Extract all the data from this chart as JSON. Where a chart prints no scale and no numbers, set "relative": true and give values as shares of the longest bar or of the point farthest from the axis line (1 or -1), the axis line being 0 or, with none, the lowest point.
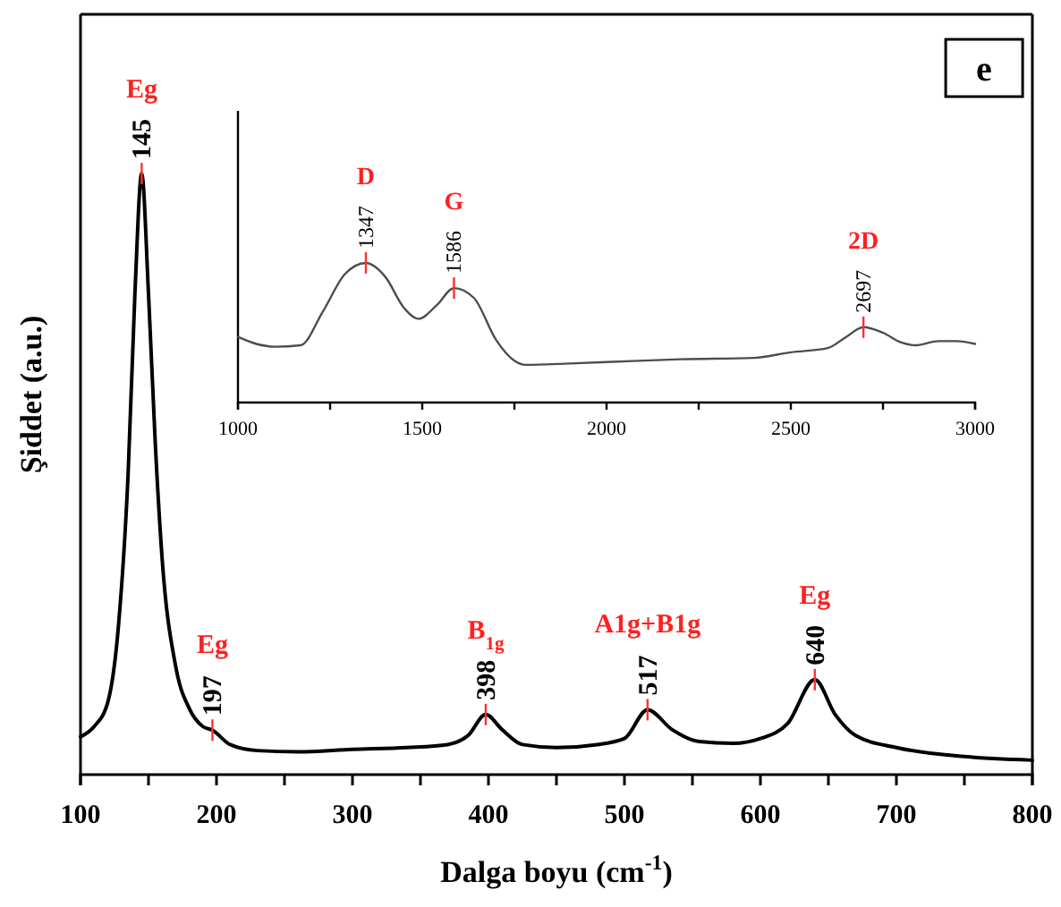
{
  "chart_data": [
    {
      "type": "line",
      "relative": true,
      "xlabel": "Dalga boyu (cm$^{-1}$)",
      "ylabel": "Şiddet (a.u.)",
      "xlim": [
        100,
        800
      ],
      "xticks": [
        100,
        {
          "value": 150,
          "label": null
        },
        200,
        {
          "value": 250,
          "label": null
        },
        300,
        {
          "value": 350,
          "label": null
        },
        400,
        {
          "value": 450,
          "label": null
        },
        500,
        {
          "value": 550,
          "label": null
        },
        600,
        {
          "value": 650,
          "label": null
        },
        700,
        {
          "value": 750,
          "label": null
        },
        800
      ],
      "x": [
        100,
        110,
        120,
        128,
        135,
        140,
        145,
        150,
        155,
        160,
        170,
        180,
        190,
        197,
        210,
        230,
        260,
        300,
        340,
        370,
        385,
        398,
        410,
        425,
        450,
        480,
        500,
        517,
        535,
        555,
        580,
        600,
        620,
        640,
        655,
        670,
        700,
        750,
        800
      ],
      "series": [
        {
          "color": "#000000",
          "values": [
            0.063,
            0.08,
            0.12,
            0.25,
            0.5,
            0.8,
            1.0,
            0.8,
            0.55,
            0.36,
            0.18,
            0.11,
            0.08,
            0.074,
            0.05,
            0.04,
            0.038,
            0.042,
            0.045,
            0.05,
            0.065,
            0.1,
            0.075,
            0.05,
            0.045,
            0.05,
            0.06,
            0.108,
            0.075,
            0.055,
            0.052,
            0.06,
            0.085,
            0.158,
            0.1,
            0.065,
            0.045,
            0.03,
            0.024
          ]
        }
      ],
      "annotations": [
        {
          "text": "145",
          "x": 145,
          "y": 1.0
        },
        {
          "text": "Eg",
          "x": 145,
          "y": 1.0
        },
        {
          "text": "197",
          "x": 197,
          "y": 0.074
        },
        {
          "text": "Eg",
          "x": 197,
          "y": 0.074
        },
        {
          "text": "398",
          "x": 398,
          "y": 0.1
        },
        {
          "text": "B$_{1g}$",
          "x": 398,
          "y": 0.1
        },
        {
          "text": "517",
          "x": 517,
          "y": 0.108
        },
        {
          "text": "A1g+B1g",
          "x": 517,
          "y": 0.108
        },
        {
          "text": "640",
          "x": 640,
          "y": 0.158
        },
        {
          "text": "Eg",
          "x": 640,
          "y": 0.158
        },
        "e"
      ]
    },
    {
      "type": "line",
      "relative": true,
      "xlim": [
        1000,
        3000
      ],
      "xticks": [
        1000,
        {
          "value": 1250,
          "label": null
        },
        1500,
        {
          "value": 1750,
          "label": null
        },
        2000,
        {
          "value": 2250,
          "label": null
        },
        2500,
        {
          "value": 2750,
          "label": null
        },
        3000
      ],
      "x": [
        1000,
        1050,
        1100,
        1170,
        1230,
        1290,
        1347,
        1400,
        1450,
        1490,
        1540,
        1586,
        1640,
        1700,
        1750,
        1780,
        1900,
        2000,
        2200,
        2400,
        2500,
        2600,
        2650,
        2697,
        2750,
        2800,
        2840,
        2900,
        2950,
        3000
      ],
      "series": [
        {
          "color": "#4d4d4d",
          "values": [
            0.47,
            0.42,
            0.4,
            0.41,
            0.65,
            0.92,
            1.0,
            0.9,
            0.68,
            0.6,
            0.7,
            0.82,
            0.75,
            0.45,
            0.3,
            0.27,
            0.28,
            0.29,
            0.31,
            0.32,
            0.36,
            0.39,
            0.47,
            0.54,
            0.5,
            0.43,
            0.41,
            0.44,
            0.44,
            0.42
          ]
        }
      ],
      "annotations": [
        {
          "text": "1347",
          "x": 1347,
          "y": 1.0
        },
        {
          "text": "D",
          "x": 1347,
          "y": 1.0
        },
        {
          "text": "1586",
          "x": 1586,
          "y": 0.82
        },
        {
          "text": "G",
          "x": 1586,
          "y": 0.82
        },
        {
          "text": "2697",
          "x": 2697,
          "y": 0.54
        },
        {
          "text": "2D",
          "x": 2697,
          "y": 0.54
        }
      ]
    }
  ]
}
